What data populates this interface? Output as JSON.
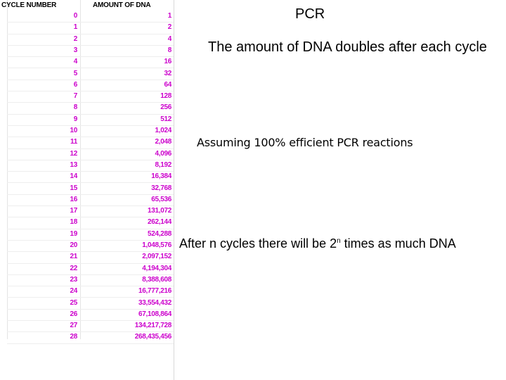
{
  "slide": {
    "title": "PCR",
    "subtitle": "The amount of DNA doubles after each cycle",
    "note": "Assuming 100% efficient PCR reactions",
    "formula": {
      "before": "After n cycles there will be 2",
      "exponent": "n",
      "after": " times as much DNA"
    }
  },
  "table": {
    "headers": [
      "CYCLE NUMBER",
      "AMOUNT OF DNA"
    ],
    "rows": [
      [
        "0",
        "1"
      ],
      [
        "1",
        "2"
      ],
      [
        "2",
        "4"
      ],
      [
        "3",
        "8"
      ],
      [
        "4",
        "16"
      ],
      [
        "5",
        "32"
      ],
      [
        "6",
        "64"
      ],
      [
        "7",
        "128"
      ],
      [
        "8",
        "256"
      ],
      [
        "9",
        "512"
      ],
      [
        "10",
        "1,024"
      ],
      [
        "11",
        "2,048"
      ],
      [
        "12",
        "4,096"
      ],
      [
        "13",
        "8,192"
      ],
      [
        "14",
        "16,384"
      ],
      [
        "15",
        "32,768"
      ],
      [
        "16",
        "65,536"
      ],
      [
        "17",
        "131,072"
      ],
      [
        "18",
        "262,144"
      ],
      [
        "19",
        "524,288"
      ],
      [
        "20",
        "1,048,576"
      ],
      [
        "21",
        "2,097,152"
      ],
      [
        "22",
        "4,194,304"
      ],
      [
        "23",
        "8,388,608"
      ],
      [
        "24",
        "16,777,216"
      ],
      [
        "25",
        "33,554,432"
      ],
      [
        "26",
        "67,108,864"
      ],
      [
        "27",
        "134,217,728"
      ],
      [
        "28",
        "268,435,456"
      ]
    ],
    "value_color": "#cc00cc"
  }
}
